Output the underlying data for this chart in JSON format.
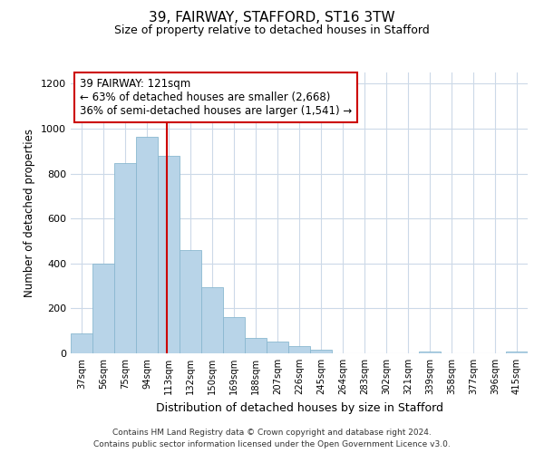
{
  "title": "39, FAIRWAY, STAFFORD, ST16 3TW",
  "subtitle": "Size of property relative to detached houses in Stafford",
  "xlabel": "Distribution of detached houses by size in Stafford",
  "ylabel": "Number of detached properties",
  "bar_labels": [
    "37sqm",
    "56sqm",
    "75sqm",
    "94sqm",
    "113sqm",
    "132sqm",
    "150sqm",
    "169sqm",
    "188sqm",
    "207sqm",
    "226sqm",
    "245sqm",
    "264sqm",
    "283sqm",
    "302sqm",
    "321sqm",
    "339sqm",
    "358sqm",
    "377sqm",
    "396sqm",
    "415sqm"
  ],
  "bar_values": [
    90,
    400,
    845,
    965,
    880,
    460,
    295,
    160,
    70,
    52,
    33,
    18,
    0,
    0,
    0,
    0,
    10,
    0,
    0,
    0,
    8
  ],
  "bar_color": "#b8d4e8",
  "bar_edgecolor": "#8ab8d0",
  "redline_color": "#cc0000",
  "annotation_title": "39 FAIRWAY: 121sqm",
  "annotation_line1": "← 63% of detached houses are smaller (2,668)",
  "annotation_line2": "36% of semi-detached houses are larger (1,541) →",
  "annotation_box_edgecolor": "#cc0000",
  "ylim": [
    0,
    1250
  ],
  "yticks": [
    0,
    200,
    400,
    600,
    800,
    1000,
    1200
  ],
  "footnote1": "Contains HM Land Registry data © Crown copyright and database right 2024.",
  "footnote2": "Contains public sector information licensed under the Open Government Licence v3.0.",
  "background_color": "#ffffff",
  "grid_color": "#ccd9e8"
}
